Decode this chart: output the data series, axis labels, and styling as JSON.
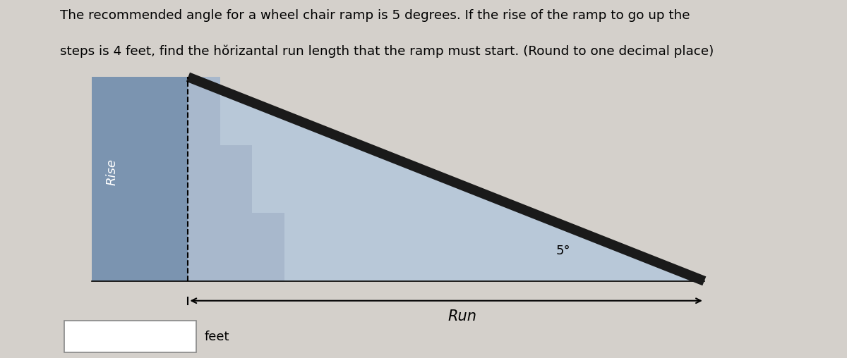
{
  "title_line1": "The recommended angle for a wheel chair ramp is 5 degrees. If the rise of the ramp to go up the",
  "title_line2": "steps is 4 feet, find the hŏrizantal run length that the ramp must start. (Round to one decimal place)",
  "background_color": "#d4d0cb",
  "left_rect_color": "#7b94b0",
  "steps_color": "#a8b8cc",
  "ramp_fill_color": "#b8c8d8",
  "ramp_line_color": "#1a1a1a",
  "angle_label": "5°",
  "run_label": "Run",
  "rise_label": "Rise",
  "feet_label": "feet",
  "fig_width": 12.0,
  "fig_height": 5.08,
  "dpi": 100
}
